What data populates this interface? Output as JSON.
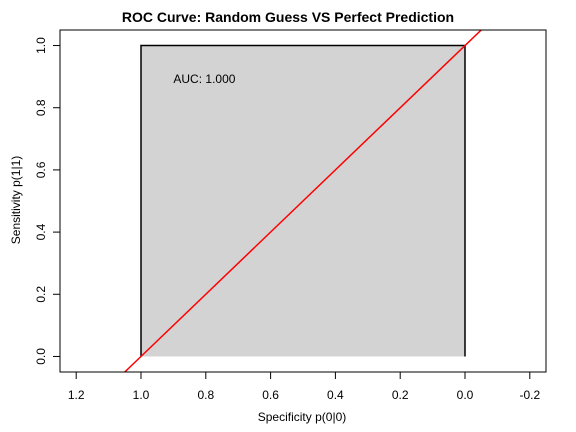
{
  "chart_data": {
    "type": "line",
    "title": "ROC Curve: Random Guess VS Perfect Prediction",
    "xlabel": "Specificity  p(0|0)",
    "ylabel": "Sensitivity  p(1|1)",
    "x_reversed": true,
    "xlim": [
      1.25,
      -0.25
    ],
    "ylim": [
      -0.05,
      1.05
    ],
    "x_ticks": [
      1.2,
      1.0,
      0.8,
      0.6,
      0.4,
      0.2,
      0.0,
      -0.2
    ],
    "x_tick_labels": [
      "1.2",
      "1.0",
      "0.8",
      "0.6",
      "0.4",
      "0.2",
      "0.0",
      "-0.2"
    ],
    "y_ticks": [
      0.0,
      0.2,
      0.4,
      0.6,
      0.8,
      1.0
    ],
    "y_tick_labels": [
      "0.0",
      "0.2",
      "0.4",
      "0.6",
      "0.8",
      "1.0"
    ],
    "grid": false,
    "series": [
      {
        "kind": "roc-curve",
        "color": "#000000",
        "fill": "#d3d3d3",
        "x": [
          1.0,
          1.0,
          0.0,
          0.0
        ],
        "y": [
          0.0,
          1.0,
          1.0,
          0.0
        ]
      },
      {
        "kind": "reference-line",
        "color": "#ff0000",
        "equation": "sensitivity = 1 - specificity"
      }
    ],
    "annotations": [
      {
        "text": "AUC: 1.000",
        "x": 0.9,
        "y": 0.88
      }
    ]
  }
}
